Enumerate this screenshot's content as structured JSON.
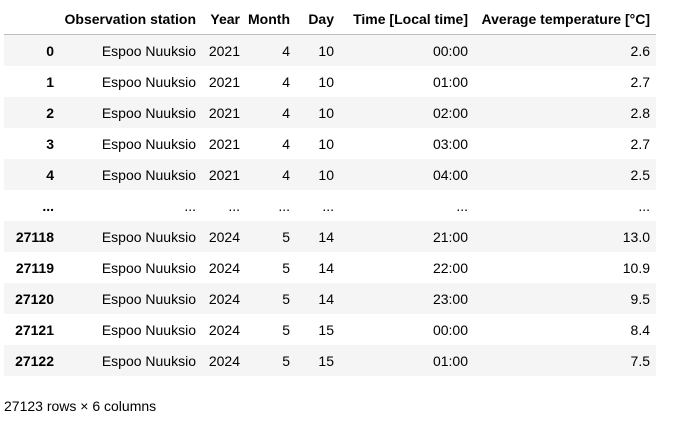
{
  "table": {
    "columns": [
      "",
      "Observation station",
      "Year",
      "Month",
      "Day",
      "Time [Local time]",
      "Average temperature [°C]"
    ],
    "rows": [
      {
        "index": "0",
        "station": "Espoo Nuuksio",
        "year": "2021",
        "month": "4",
        "day": "10",
        "time": "00:00",
        "avg": "2.6"
      },
      {
        "index": "1",
        "station": "Espoo Nuuksio",
        "year": "2021",
        "month": "4",
        "day": "10",
        "time": "01:00",
        "avg": "2.7"
      },
      {
        "index": "2",
        "station": "Espoo Nuuksio",
        "year": "2021",
        "month": "4",
        "day": "10",
        "time": "02:00",
        "avg": "2.8"
      },
      {
        "index": "3",
        "station": "Espoo Nuuksio",
        "year": "2021",
        "month": "4",
        "day": "10",
        "time": "03:00",
        "avg": "2.7"
      },
      {
        "index": "4",
        "station": "Espoo Nuuksio",
        "year": "2021",
        "month": "4",
        "day": "10",
        "time": "04:00",
        "avg": "2.5"
      },
      {
        "index": "...",
        "station": "...",
        "year": "...",
        "month": "...",
        "day": "...",
        "time": "...",
        "avg": "..."
      },
      {
        "index": "27118",
        "station": "Espoo Nuuksio",
        "year": "2024",
        "month": "5",
        "day": "14",
        "time": "21:00",
        "avg": "13.0"
      },
      {
        "index": "27119",
        "station": "Espoo Nuuksio",
        "year": "2024",
        "month": "5",
        "day": "14",
        "time": "22:00",
        "avg": "10.9"
      },
      {
        "index": "27120",
        "station": "Espoo Nuuksio",
        "year": "2024",
        "month": "5",
        "day": "14",
        "time": "23:00",
        "avg": "9.5"
      },
      {
        "index": "27121",
        "station": "Espoo Nuuksio",
        "year": "2024",
        "month": "5",
        "day": "15",
        "time": "00:00",
        "avg": "8.4"
      },
      {
        "index": "27122",
        "station": "Espoo Nuuksio",
        "year": "2024",
        "month": "5",
        "day": "15",
        "time": "01:00",
        "avg": "7.5"
      }
    ]
  },
  "footer": {
    "shape_text": "27123 rows × 6 columns"
  },
  "colors": {
    "stripe": "#f5f5f5",
    "header_border": "#bdbdbd"
  }
}
